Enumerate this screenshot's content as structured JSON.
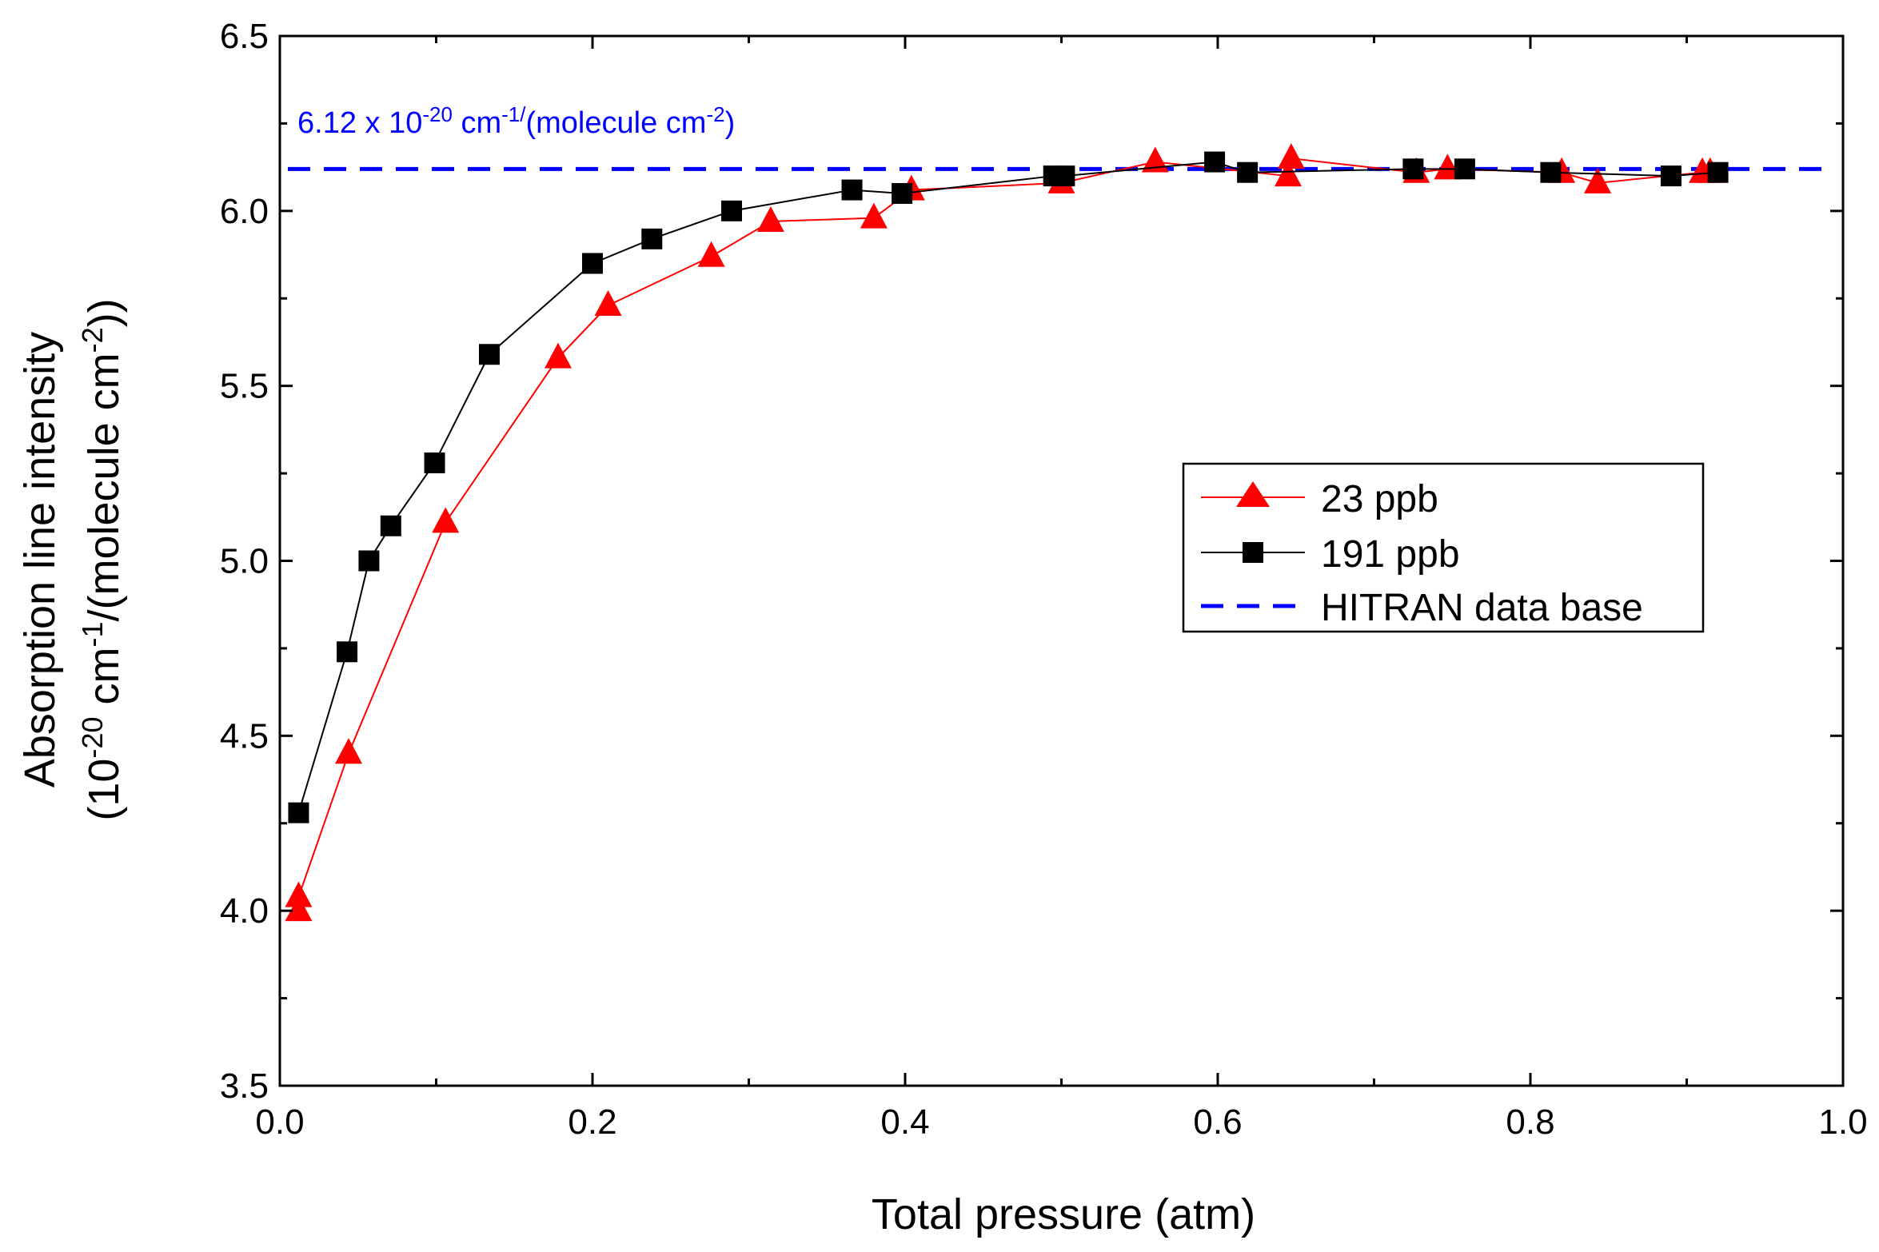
{
  "chart_data": {
    "type": "line",
    "title": "",
    "xlabel": "Total pressure (atm)",
    "ylabel_line1": "Absorption line intensity",
    "ylabel_line2": {
      "open": "(10",
      "exp1": "-20",
      "mid1": " cm",
      "exp2": "-1",
      "mid2": "/(molecule cm",
      "exp3": "-2",
      "close": "))"
    },
    "xlim": [
      0.0,
      1.0
    ],
    "ylim": [
      3.5,
      6.5
    ],
    "xticks": [
      "0.0",
      "0.2",
      "0.4",
      "0.6",
      "0.8",
      "1.0"
    ],
    "xtick_values": [
      0.0,
      0.2,
      0.4,
      0.6,
      0.8,
      1.0
    ],
    "yticks": [
      "3.5",
      "4.0",
      "4.5",
      "5.0",
      "5.5",
      "6.0",
      "6.5"
    ],
    "ytick_values": [
      3.5,
      4.0,
      4.5,
      5.0,
      5.5,
      6.0,
      6.5
    ],
    "grid": false,
    "legend_position": "center-right",
    "series": [
      {
        "name": "23 ppb",
        "color": "#ff0000",
        "marker": "triangle",
        "x": [
          0.012,
          0.012,
          0.044,
          0.106,
          0.178,
          0.21,
          0.276,
          0.314,
          0.38,
          0.404,
          0.5,
          0.56,
          0.645,
          0.647,
          0.727,
          0.747,
          0.82,
          0.843,
          0.91,
          0.915
        ],
        "y": [
          4.0,
          4.04,
          4.45,
          5.11,
          5.58,
          5.73,
          5.87,
          5.97,
          5.98,
          6.06,
          6.08,
          6.14,
          6.1,
          6.15,
          6.11,
          6.12,
          6.11,
          6.08,
          6.11,
          6.11
        ]
      },
      {
        "name": "191 ppb",
        "color": "#000000",
        "marker": "square",
        "x": [
          0.012,
          0.043,
          0.057,
          0.071,
          0.099,
          0.134,
          0.2,
          0.238,
          0.289,
          0.366,
          0.398,
          0.495,
          0.502,
          0.598,
          0.619,
          0.725,
          0.758,
          0.813,
          0.89,
          0.92
        ],
        "y": [
          4.28,
          4.74,
          5.0,
          5.1,
          5.28,
          5.59,
          5.85,
          5.92,
          6.0,
          6.06,
          6.05,
          6.1,
          6.1,
          6.14,
          6.11,
          6.12,
          6.12,
          6.11,
          6.1,
          6.11
        ]
      },
      {
        "name": "HITRAN data base",
        "color": "#0000ff",
        "style": "dashed",
        "x": [
          0.0,
          1.0
        ],
        "y": [
          6.12,
          6.12
        ]
      }
    ],
    "annotation": {
      "text_base": "6.12 x 10",
      "exp1": "-20",
      "text_mid": " cm",
      "exp2": "-1/",
      "text_mid2": "(molecule cm",
      "exp3": "-2",
      "text_end": ")",
      "color": "#0000ff"
    }
  }
}
